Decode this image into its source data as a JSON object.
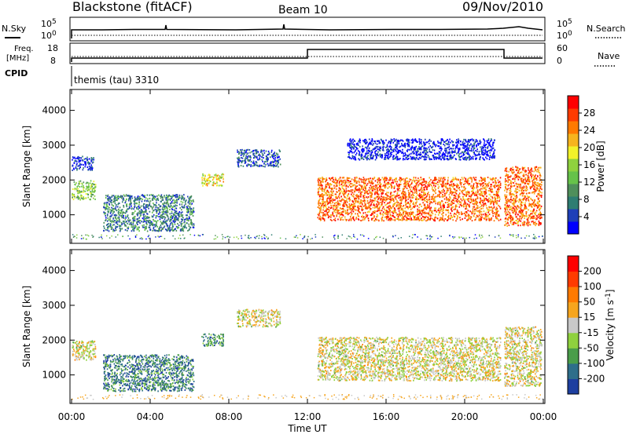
{
  "header": {
    "station": "Blackstone (fitACF)",
    "beam": "Beam 10",
    "date": "09/Nov/2010"
  },
  "noise_panel": {
    "left_label": "N.Sky",
    "right_label": "N.Search",
    "left_ticks": [
      "10^5",
      "10^0"
    ],
    "right_ticks": [
      "10^5",
      "10^0"
    ]
  },
  "freq_panel": {
    "left_label_1": "Freq.",
    "left_label_2": "[MHz]",
    "right_label": "Nave",
    "left_ticks": [
      "18",
      "8"
    ],
    "right_ticks": [
      "60",
      "0"
    ]
  },
  "cpid_panel": {
    "label": "CPID",
    "text": "themis (tau) 3310"
  },
  "axes": {
    "xlabel": "Time UT",
    "x_ticks": [
      "00:00",
      "04:00",
      "08:00",
      "12:00",
      "16:00",
      "20:00",
      "00:00"
    ],
    "ylabel": "Slant Range [km]",
    "y_ticks": [
      "1000",
      "2000",
      "3000",
      "4000"
    ]
  },
  "chart_data": [
    {
      "type": "heatmap",
      "title": "",
      "quantity": "Power",
      "colorbar_label": "Power [dB]",
      "colorbar_ticks": [
        "28",
        "24",
        "20",
        "16",
        "12",
        "8",
        "4"
      ],
      "colorbar_colors": [
        "#0000ff",
        "#1e3fb8",
        "#2e7d72",
        "#4f8f5b",
        "#66c24a",
        "#8fd13e",
        "#f2f22a",
        "#f6b41e",
        "#ff7a00",
        "#ff3b00",
        "#ff0000"
      ],
      "xlabel": "Time UT",
      "ylabel": "Slant Range [km]",
      "xlim_hours": [
        0,
        24
      ],
      "ylim_km": [
        180,
        4600
      ],
      "scatter_regions": [
        {
          "t0": 0.0,
          "t1": 1.2,
          "r0": 1450,
          "r1": 2000,
          "level": 0.45
        },
        {
          "t0": 0.0,
          "t1": 1.1,
          "r0": 2300,
          "r1": 2700,
          "level": 0.1
        },
        {
          "t0": 1.6,
          "t1": 6.2,
          "r0": 550,
          "r1": 1600,
          "level": 0.25
        },
        {
          "t0": 6.6,
          "t1": 7.7,
          "r0": 1850,
          "r1": 2200,
          "level": 0.6
        },
        {
          "t0": 8.4,
          "t1": 10.6,
          "r0": 2400,
          "r1": 2900,
          "level": 0.15
        },
        {
          "t0": 12.5,
          "t1": 21.8,
          "r0": 850,
          "r1": 2100,
          "level": 0.8
        },
        {
          "t0": 14.0,
          "t1": 21.5,
          "r0": 2600,
          "r1": 3200,
          "level": 0.05
        },
        {
          "t0": 22.0,
          "t1": 23.9,
          "r0": 700,
          "r1": 2400,
          "level": 0.8
        }
      ]
    },
    {
      "type": "heatmap",
      "title": "",
      "quantity": "Velocity",
      "colorbar_label": "Velocity [m s^-1]",
      "colorbar_ticks": [
        "200",
        "100",
        "50",
        "15",
        "-15",
        "-50",
        "-100",
        "-200"
      ],
      "colorbar_colors": [
        "#1e3fa0",
        "#2e6e8a",
        "#4a9d4a",
        "#8fd13e",
        "#c8c8c8",
        "#f6a51e",
        "#ff7a00",
        "#ff3b00",
        "#ff0000"
      ],
      "xlabel": "Time UT",
      "ylabel": "Slant Range [km]",
      "xlim_hours": [
        0,
        24
      ],
      "ylim_km": [
        180,
        4600
      ],
      "scatter_regions": [
        {
          "t0": 0.0,
          "t1": 1.2,
          "r0": 1450,
          "r1": 2000,
          "level": 0.5
        },
        {
          "t0": 1.6,
          "t1": 6.2,
          "r0": 550,
          "r1": 1600,
          "level": 0.2
        },
        {
          "t0": 6.6,
          "t1": 7.7,
          "r0": 1850,
          "r1": 2200,
          "level": 0.25
        },
        {
          "t0": 8.4,
          "t1": 10.6,
          "r0": 2400,
          "r1": 2900,
          "level": 0.5
        },
        {
          "t0": 12.5,
          "t1": 21.8,
          "r0": 850,
          "r1": 2100,
          "level": 0.5
        },
        {
          "t0": 22.0,
          "t1": 23.9,
          "r0": 700,
          "r1": 2400,
          "level": 0.5
        }
      ]
    }
  ]
}
